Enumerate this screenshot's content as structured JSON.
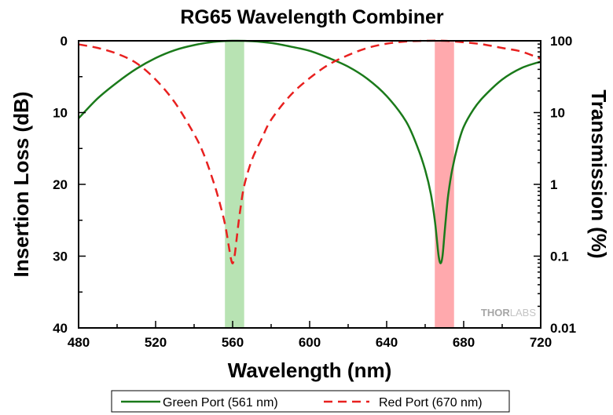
{
  "chart_data": {
    "type": "line",
    "title": "RG65 Wavelength Combiner",
    "xlabel": "Wavelength (nm)",
    "ylabel_left": "Insertion Loss (dB)",
    "ylabel_right": "Transmission (%)",
    "xlim": [
      480,
      720
    ],
    "ylim_left": [
      0,
      40
    ],
    "ylim_left_inverted": true,
    "ylim_right": [
      0.01,
      100
    ],
    "y_right_scale": "log",
    "x_ticks": [
      "480",
      "520",
      "560",
      "600",
      "640",
      "680",
      "720"
    ],
    "y_left_ticks": [
      "0",
      "10",
      "20",
      "30",
      "40"
    ],
    "y_right_ticks": [
      "100",
      "10",
      "1",
      "0.1",
      "0.01"
    ],
    "grid": false,
    "bands": [
      {
        "x_range": [
          556,
          566
        ],
        "color": "#b8e3b3"
      },
      {
        "x_range": [
          665,
          675
        ],
        "color": "#ffa9ad"
      }
    ],
    "series": [
      {
        "name": "Green Port (561 nm)",
        "color": "#1a7a1a",
        "style": "solid",
        "x": [
          480,
          490,
          500,
          510,
          520,
          530,
          540,
          550,
          560,
          570,
          580,
          590,
          600,
          610,
          620,
          630,
          640,
          650,
          656,
          660,
          663,
          665,
          666,
          667,
          668,
          669,
          670,
          671,
          672,
          674,
          677,
          680,
          685,
          690,
          700,
          710,
          720
        ],
        "y": [
          10.8,
          8.0,
          5.8,
          3.9,
          2.4,
          1.3,
          0.6,
          0.15,
          0.0,
          0.05,
          0.3,
          0.8,
          1.4,
          2.4,
          3.6,
          5.3,
          7.7,
          11.2,
          14.8,
          18.0,
          21.4,
          25.0,
          27.5,
          30.0,
          31.0,
          30.0,
          27.0,
          24.0,
          21.4,
          18.0,
          14.5,
          12.0,
          9.6,
          7.9,
          5.4,
          3.8,
          2.9
        ]
      },
      {
        "name": "Red Port (670 nm)",
        "color": "#e8201f",
        "style": "dashed",
        "x": [
          480,
          490,
          500,
          510,
          520,
          530,
          540,
          545,
          550,
          553,
          556,
          558,
          559,
          560,
          561,
          562,
          563,
          564,
          566,
          570,
          575,
          580,
          590,
          600,
          610,
          620,
          630,
          640,
          650,
          660,
          670,
          680,
          690,
          700,
          710,
          720
        ],
        "y": [
          0.5,
          1.0,
          1.8,
          3.1,
          5.4,
          8.6,
          13.0,
          15.8,
          19.6,
          22.3,
          25.5,
          28.6,
          30.2,
          31.0,
          30.0,
          27.8,
          25.5,
          23.5,
          20.2,
          16.6,
          13.7,
          11.0,
          7.6,
          5.2,
          3.3,
          2.0,
          1.0,
          0.4,
          0.1,
          0.0,
          0.0,
          0.2,
          0.5,
          1.0,
          1.5,
          2.5
        ]
      }
    ],
    "legend_position": "bottom-center",
    "watermark": {
      "bold": "THOR",
      "light": "LABS"
    }
  }
}
